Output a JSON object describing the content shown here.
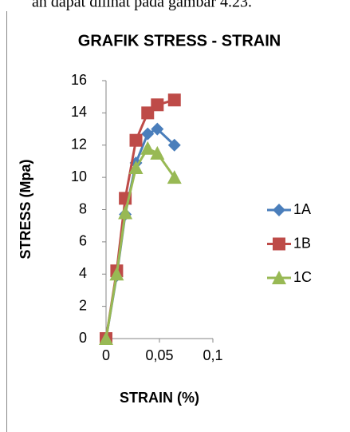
{
  "text_above": "an dapat dilihat pada gambar 4.23.",
  "chart_data": {
    "type": "line",
    "title": "GRAFIK STRESS - STRAIN",
    "xlabel": "STRAIN (%)",
    "ylabel": "STRESS (Mpa)",
    "x": [
      0,
      0.01,
      0.018,
      0.028,
      0.039,
      0.048,
      0.064
    ],
    "series": [
      {
        "name": "1A",
        "color": "#4a7ebb",
        "marker": "diamond",
        "values": [
          0,
          3.9,
          7.7,
          10.9,
          12.7,
          13,
          12
        ]
      },
      {
        "name": "1B",
        "color": "#be4b48",
        "marker": "square",
        "values": [
          0,
          4.2,
          8.7,
          12.3,
          14,
          14.5,
          14.8
        ]
      },
      {
        "name": "1C",
        "color": "#98b954",
        "marker": "triangle",
        "values": [
          0,
          4,
          7.8,
          10.6,
          11.8,
          11.5,
          10
        ]
      }
    ],
    "xlim": [
      0,
      0.1
    ],
    "xticks": [
      0,
      {
        "value": 0.05,
        "label": "0,05"
      },
      {
        "value": 0.1,
        "label": "0,1"
      }
    ],
    "ylim": [
      0,
      16
    ],
    "yticks": [
      0,
      2,
      4,
      6,
      8,
      10,
      12,
      14,
      16
    ],
    "grid": false,
    "legend": "right"
  }
}
